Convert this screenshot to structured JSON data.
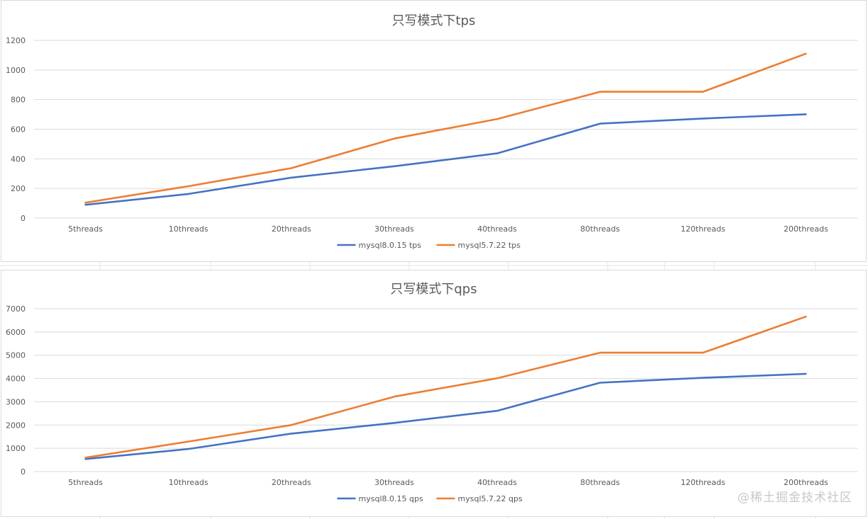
{
  "chart_data": [
    {
      "type": "line",
      "title": "只写模式下tps",
      "categories": [
        "5threads",
        "10threads",
        "20threads",
        "30threads",
        "40threads",
        "80threads",
        "120threads",
        "200threads"
      ],
      "series": [
        {
          "name": "mysql8.0.15 tps",
          "color": "#4472C4",
          "values": [
            90,
            163,
            273,
            350,
            437,
            638,
            672,
            701
          ]
        },
        {
          "name": "mysql5.7.22 tps",
          "color": "#ED7D31",
          "values": [
            104,
            215,
            337,
            537,
            669,
            853,
            853,
            1110
          ]
        }
      ],
      "yticks": [
        0,
        200,
        400,
        600,
        800,
        1000,
        1200
      ],
      "ylim": [
        0,
        1200
      ],
      "grid": true,
      "legend": "bottom"
    },
    {
      "type": "line",
      "title": "只写模式下qps",
      "categories": [
        "5threads",
        "10threads",
        "20threads",
        "30threads",
        "40threads",
        "80threads",
        "120threads",
        "200threads"
      ],
      "series": [
        {
          "name": "mysql8.0.15 qps",
          "color": "#4472C4",
          "values": [
            540,
            970,
            1630,
            2090,
            2610,
            3820,
            4030,
            4200
          ]
        },
        {
          "name": "mysql5.7.22 qps",
          "color": "#ED7D31",
          "values": [
            600,
            1290,
            2000,
            3220,
            4010,
            5110,
            5110,
            6660
          ]
        }
      ],
      "yticks": [
        0,
        1000,
        2000,
        3000,
        4000,
        5000,
        6000,
        7000
      ],
      "ylim": [
        0,
        7000
      ],
      "grid": true,
      "legend": "bottom"
    }
  ],
  "watermark": "@稀土掘金技术社区"
}
